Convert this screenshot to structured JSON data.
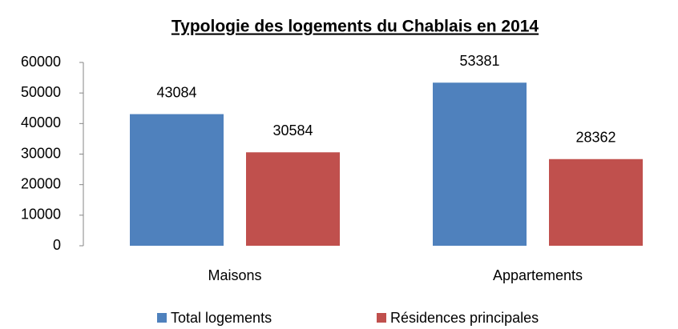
{
  "chart_data": {
    "type": "bar",
    "title": "Typologie des logements du Chablais en 2014",
    "categories": [
      "Maisons",
      "Appartements"
    ],
    "series": [
      {
        "name": "Total logements",
        "color": "#4f81bd",
        "values": [
          43084,
          53381
        ]
      },
      {
        "name": "Résidences principales",
        "color": "#c0504d",
        "values": [
          30584,
          28362
        ]
      }
    ],
    "ylim": [
      0,
      60000
    ],
    "yticks": [
      0,
      10000,
      20000,
      30000,
      40000,
      50000,
      60000
    ],
    "grid": false,
    "legend": "bottom"
  }
}
